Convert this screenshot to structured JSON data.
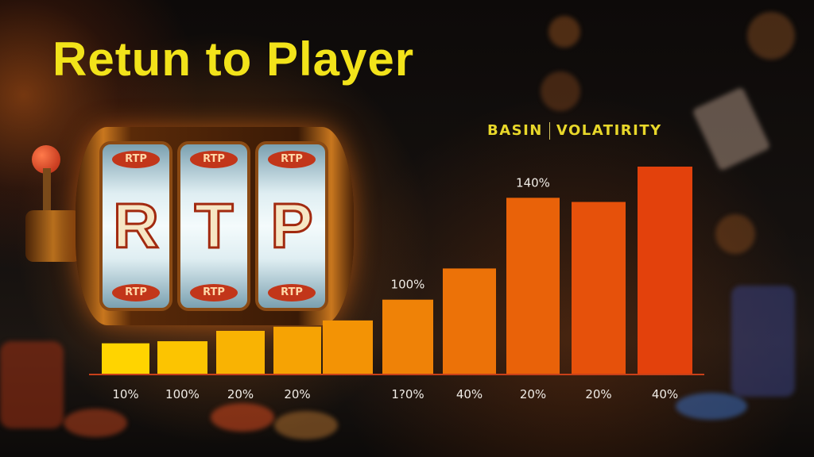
{
  "title": "Retun to Player",
  "slot_machine": {
    "reel_symbols": [
      "R",
      "T",
      "P"
    ],
    "reel_badge": "RTP"
  },
  "colors": {
    "title": "#f2e31a",
    "bar_start": "#ffd400",
    "bar_end": "#e3410c",
    "baseline": "#c8401a"
  },
  "chart_data": {
    "type": "bar",
    "title": "",
    "legend": [
      "BASIN",
      "VOLATIRITY"
    ],
    "legend_placement": "top-right",
    "grid": false,
    "ylim": [
      0,
      100
    ],
    "categories": [
      "10%",
      "100%",
      "20%",
      "20%",
      "",
      "1?0%",
      "40%",
      "20%",
      "20%",
      "40%"
    ],
    "values": [
      15,
      16,
      21,
      23,
      26,
      36,
      51,
      85,
      83,
      100
    ],
    "data_labels": [
      "",
      "",
      "",
      "",
      "",
      "100%",
      "",
      "140%",
      "",
      ""
    ]
  }
}
